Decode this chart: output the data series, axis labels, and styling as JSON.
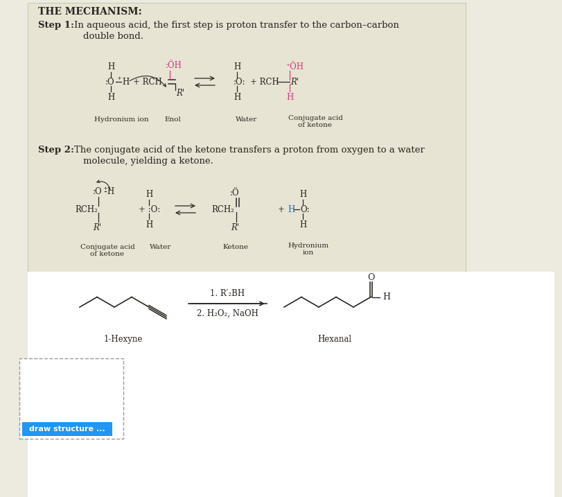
{
  "fig_w": 8.12,
  "fig_h": 7.17,
  "dpi": 100,
  "bg_outer": "#edeae0",
  "bg_mech": "#e8e4d4",
  "bg_white": "#ffffff",
  "dark": "#2a2520",
  "pink": "#e0357a",
  "blue": "#1a6ebd",
  "btn_blue": "#2196f3",
  "gray_dash": "#999999",
  "title": "THE MECHANISM:",
  "step1_bold": "Step 1:",
  "step1_text": "In aqueous acid, the first step is proton transfer to the carbon–carbon",
  "step1_text2": "double bond.",
  "step2_bold": "Step 2:",
  "step2_text": "The conjugate acid of the ketone transfers a proton from oxygen to a water",
  "step2_text2": "molecule, yielding a ketone.",
  "lbl_hydronium": "Hydronium ion",
  "lbl_enol": "Enol",
  "lbl_water": "Water",
  "lbl_conj": "Conjugate acid\nof ketone",
  "lbl_ketone": "Ketone",
  "lbl_hydronium2": "Hydronium\nion",
  "lbl_1hexyne": "1-Hexyne",
  "lbl_hexanal": "Hexanal",
  "reagent1": "1. R′₂BH",
  "reagent2": "2. H₂O₂, NaOH",
  "btn_text": "draw structure ..."
}
